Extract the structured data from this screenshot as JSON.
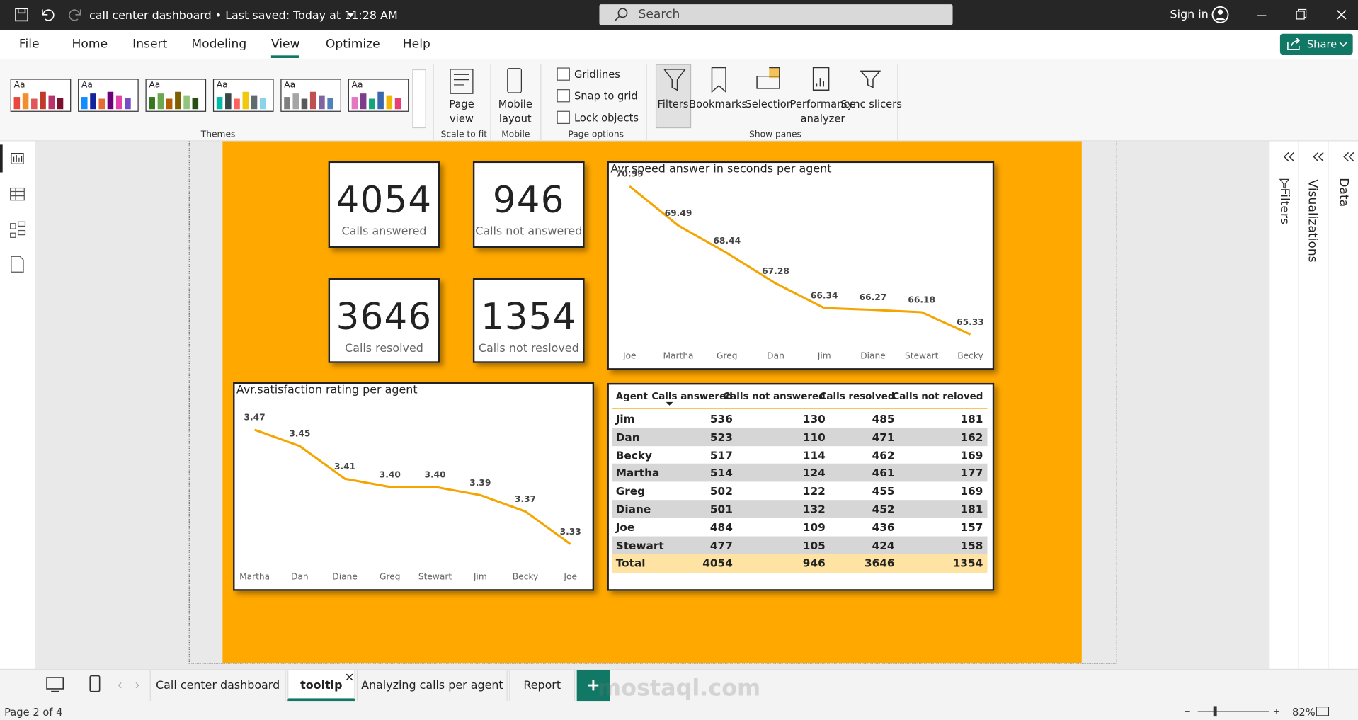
{
  "titlebar": {
    "document": "call center dashboard • Last saved: Today at 11:28 AM",
    "search": "Search",
    "sign_in": "Sign in"
  },
  "menu": [
    "File",
    "Home",
    "Insert",
    "Modeling",
    "View",
    "Optimize",
    "Help"
  ],
  "share": "Share",
  "ribbon": {
    "themes": [
      "Aa",
      "Aa",
      "Aa",
      "Aa",
      "Aa",
      "Aa"
    ],
    "themes_label": "Themes",
    "page_view": "Page view",
    "scale_to_fit": "Scale to fit",
    "mobile_layout": "Mobile layout",
    "mobile": "Mobile",
    "options": [
      "Gridlines",
      "Snap to grid",
      "Lock objects"
    ],
    "page_options": "Page options",
    "panes": [
      "Filters",
      "Bookmarks",
      "Selection",
      "Performance analyzer",
      "Sync slicers"
    ],
    "show_panes": "Show panes"
  },
  "cards": [
    {
      "value": 4054,
      "label": "Calls answered"
    },
    {
      "value": 946,
      "label": "Calls not answered"
    },
    {
      "value": 3646,
      "label": "Calls resolved"
    },
    {
      "value": 1354,
      "label": "Calls not resloved"
    }
  ],
  "speed_chart": {
    "type": "line",
    "title": "Avr.speed answer in seconds per agent",
    "categories": [
      "Joe",
      "Martha",
      "Greg",
      "Dan",
      "Jim",
      "Diane",
      "Stewart",
      "Becky"
    ],
    "values": [
      70.99,
      69.49,
      68.44,
      67.28,
      66.34,
      66.27,
      66.18,
      65.33
    ],
    "color": "#f5a500"
  },
  "satisfaction_chart": {
    "type": "line",
    "title": "Avr.satisfaction rating per agent",
    "categories": [
      "Martha",
      "Dan",
      "Diane",
      "Greg",
      "Stewart",
      "Jim",
      "Becky",
      "Joe"
    ],
    "values": [
      3.47,
      3.45,
      3.41,
      3.4,
      3.4,
      3.39,
      3.37,
      3.33
    ],
    "value_labels": [
      "3.47",
      "3.45",
      "3.41",
      "3.40",
      "3.40",
      "3.39",
      "3.37",
      "3.33"
    ],
    "color": "#f5a500"
  },
  "table": {
    "columns": [
      "Agent",
      "Calls answered",
      "Calls not answered",
      "Calls resolved",
      "Calls not reloved"
    ],
    "rows": [
      [
        "Jim",
        536,
        130,
        485,
        181
      ],
      [
        "Dan",
        523,
        110,
        471,
        162
      ],
      [
        "Becky",
        517,
        114,
        462,
        169
      ],
      [
        "Martha",
        514,
        124,
        461,
        177
      ],
      [
        "Greg",
        502,
        122,
        455,
        169
      ],
      [
        "Diane",
        501,
        132,
        452,
        181
      ],
      [
        "Joe",
        484,
        109,
        436,
        157
      ],
      [
        "Stewart",
        477,
        105,
        424,
        158
      ]
    ],
    "total": [
      "Total",
      4054,
      946,
      3646,
      1354
    ]
  },
  "panes": [
    "Filters",
    "Visualizations",
    "Data"
  ],
  "tabs": [
    "Call center dashboard",
    "tooltip",
    "Analyzing calls per agent",
    "Report"
  ],
  "status": {
    "page": "Page 2 of 4",
    "zoom": "82%"
  }
}
